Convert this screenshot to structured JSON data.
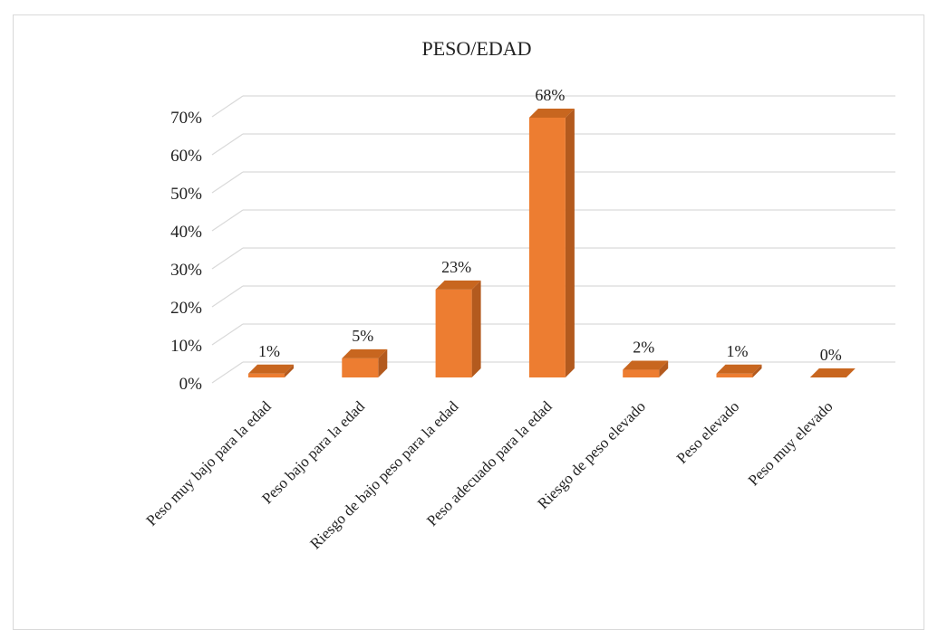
{
  "chart_data": {
    "type": "bar",
    "title": "PESO/EDAD",
    "xlabel": "",
    "ylabel": "",
    "categories": [
      "Peso muy bajo para la edad",
      "Peso bajo para la edad",
      "Riesgo de bajo peso para la edad",
      "Peso adecuado para la edad",
      "Riesgo de peso elevado",
      "Peso elevado",
      "Peso muy elevado"
    ],
    "values": [
      1,
      5,
      23,
      68,
      2,
      1,
      0
    ],
    "data_labels": [
      "1%",
      "5%",
      "23%",
      "68%",
      "2%",
      "1%",
      "0%"
    ],
    "ylim": [
      0,
      70
    ],
    "yticks": [
      0,
      10,
      20,
      30,
      40,
      50,
      60,
      70
    ],
    "ytick_labels": [
      "0%",
      "10%",
      "20%",
      "30%",
      "40%",
      "50%",
      "60%",
      "70%"
    ],
    "grid": true,
    "legend": "none",
    "bar_color": "#ED7D31",
    "bar_side_color": "#B35A1E",
    "bar_top_color": "#C8661F",
    "gridline_color": "#D9D9D9",
    "style": "3d-column"
  }
}
